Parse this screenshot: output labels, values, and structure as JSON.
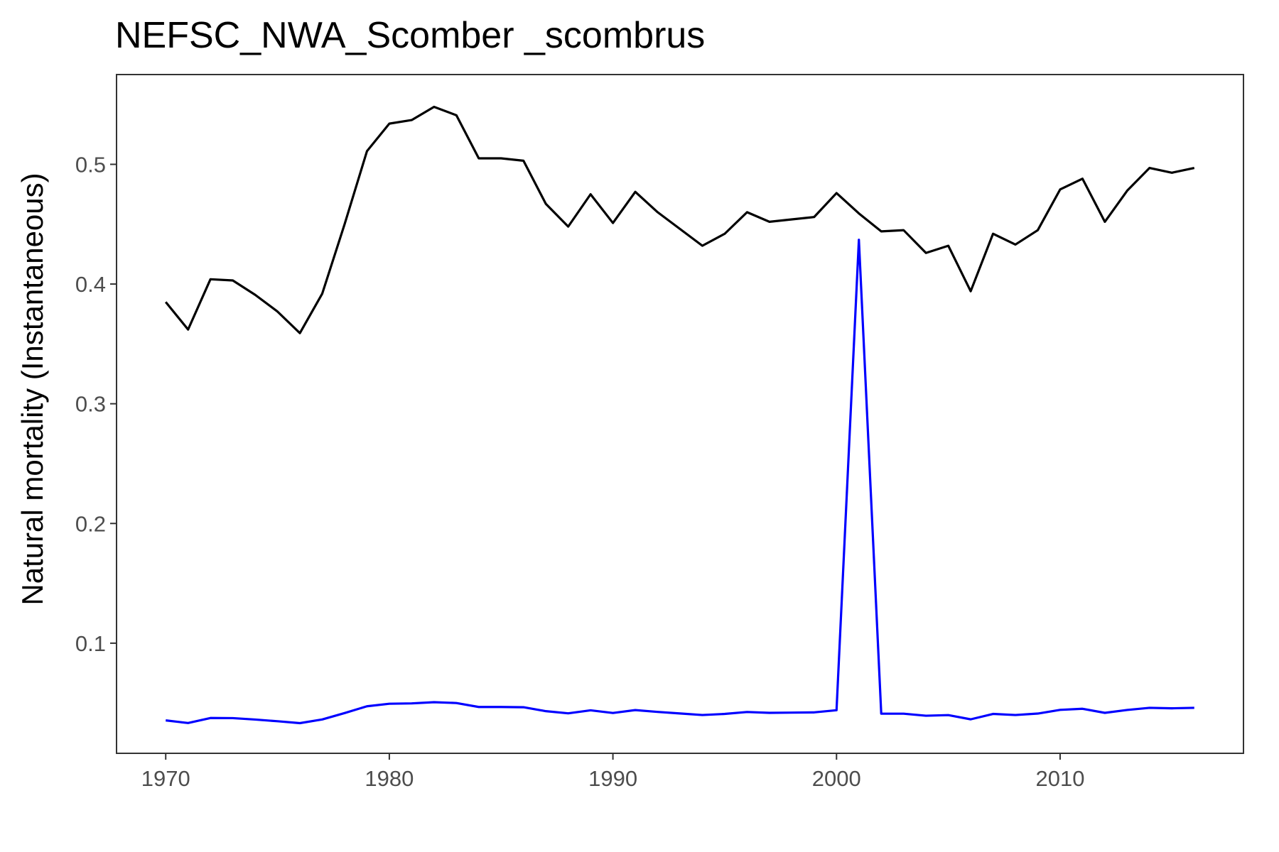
{
  "chart_data": {
    "type": "line",
    "title": "NEFSC_NWA_Scomber _scombrus",
    "xlabel": "",
    "ylabel": "Natural mortality (Instantaneous)",
    "xlim": [
      1967.8,
      2018.2
    ],
    "ylim": [
      0.008,
      0.575
    ],
    "xticks": [
      1970,
      1980,
      1990,
      2000,
      2010
    ],
    "yticks": [
      0.1,
      0.2,
      0.3,
      0.4,
      0.5
    ],
    "ytick_labels": [
      "0.1",
      "0.2",
      "0.3",
      "0.4",
      "0.5"
    ],
    "grid": false,
    "legend": "none",
    "x": [
      1970,
      1971,
      1972,
      1973,
      1974,
      1975,
      1976,
      1977,
      1978,
      1979,
      1980,
      1981,
      1982,
      1983,
      1984,
      1985,
      1986,
      1987,
      1988,
      1989,
      1990,
      1991,
      1992,
      1993,
      1994,
      1995,
      1996,
      1997,
      1998,
      1999,
      2000,
      2001,
      2002,
      2003,
      2004,
      2005,
      2006,
      2007,
      2008,
      2009,
      2010,
      2011,
      2012,
      2013,
      2014,
      2015,
      2016
    ],
    "series": [
      {
        "color": "#000000",
        "values": [
          0.385,
          0.362,
          0.404,
          0.403,
          0.391,
          0.377,
          0.359,
          0.392,
          0.45,
          0.511,
          0.534,
          0.537,
          0.548,
          0.541,
          0.505,
          0.505,
          0.503,
          0.467,
          0.448,
          0.475,
          0.451,
          0.477,
          0.46,
          0.446,
          0.432,
          0.442,
          0.46,
          0.452,
          0.454,
          0.456,
          0.476,
          0.459,
          0.444,
          0.445,
          0.426,
          0.432,
          0.394,
          0.442,
          0.433,
          0.445,
          0.479,
          0.488,
          0.452,
          0.478,
          0.497,
          0.493,
          0.497
        ]
      },
      {
        "color": "#0000ff",
        "values": [
          0.0355,
          0.0333,
          0.0375,
          0.0374,
          0.0362,
          0.0348,
          0.0332,
          0.0363,
          0.0416,
          0.0473,
          0.0494,
          0.0497,
          0.0507,
          0.05,
          0.0467,
          0.0467,
          0.0465,
          0.0432,
          0.0414,
          0.0439,
          0.0417,
          0.0441,
          0.0426,
          0.0413,
          0.04,
          0.0409,
          0.0425,
          0.0418,
          0.042,
          0.0422,
          0.044,
          0.437,
          0.0411,
          0.0411,
          0.0394,
          0.0399,
          0.0364,
          0.0409,
          0.04,
          0.0412,
          0.0443,
          0.0452,
          0.0418,
          0.0442,
          0.046,
          0.0456,
          0.046
        ]
      }
    ]
  }
}
